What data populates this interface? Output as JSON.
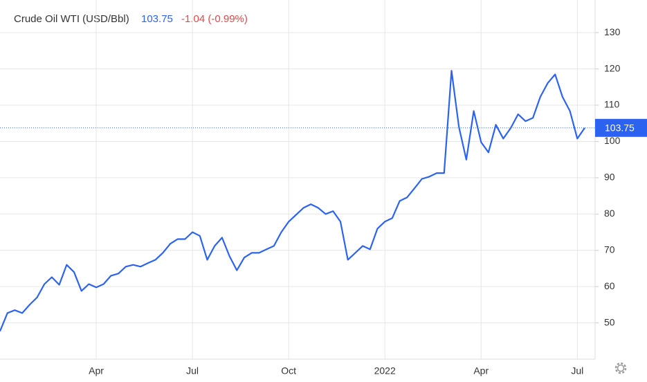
{
  "chart_data": {
    "type": "line",
    "title": "Crude Oil WTI (USD/Bbl)",
    "change_label": "-1.04 (-0.99%)",
    "categories": [
      null,
      null,
      null,
      null,
      null,
      null,
      null,
      null,
      null,
      null,
      null,
      null,
      null,
      "Apr",
      null,
      null,
      null,
      null,
      null,
      null,
      null,
      null,
      null,
      null,
      null,
      null,
      "Jul",
      null,
      null,
      null,
      null,
      null,
      null,
      null,
      null,
      null,
      null,
      null,
      null,
      "Oct",
      null,
      null,
      null,
      null,
      null,
      null,
      null,
      null,
      null,
      null,
      null,
      null,
      "2022",
      null,
      null,
      null,
      null,
      null,
      null,
      null,
      null,
      null,
      null,
      null,
      null,
      "Apr",
      null,
      null,
      null,
      null,
      null,
      null,
      null,
      null,
      null,
      null,
      null,
      null,
      "Jul",
      null
    ],
    "series": [
      {
        "name": "Crude Oil WTI",
        "color": "#2b63f0",
        "values": [
          47.7,
          52.7,
          53.5,
          52.7,
          55,
          57,
          60.7,
          62.6,
          60.5,
          66,
          64,
          58.8,
          60.7,
          59.8,
          60.7,
          63,
          63.6,
          65.5,
          66,
          65.5,
          66.5,
          67.4,
          69.3,
          71.8,
          73.1,
          73.1,
          75,
          74,
          67.4,
          71.2,
          73.5,
          68.4,
          64.5,
          68,
          69.3,
          69.3,
          70.3,
          71.2,
          75,
          77.9,
          79.8,
          81.7,
          82.7,
          81.7,
          80,
          80.8,
          77.9,
          67.4,
          69.3,
          71.2,
          70.3,
          76,
          77.9,
          78.9,
          83.6,
          84.6,
          87.1,
          89.7,
          90.3,
          91.3,
          91.3,
          119.5,
          104,
          95,
          108.4,
          99.8,
          97,
          104.6,
          100.8,
          103.7,
          107.5,
          105.6,
          106.5,
          112.3,
          116.1,
          118.5,
          112.3,
          108.4,
          100.8,
          103.75
        ]
      }
    ],
    "change_color": "#e04848",
    "ylim": [
      40,
      139
    ],
    "yticks": [
      50,
      60,
      70,
      80,
      90,
      100,
      110,
      120,
      130
    ],
    "grid": true
  }
}
